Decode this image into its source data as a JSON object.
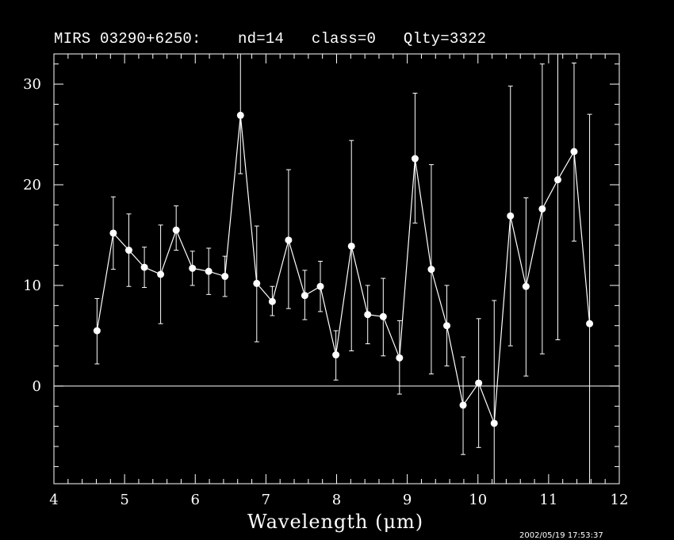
{
  "title": "MIRS 03290+6250:    nd=14   class=0   Qlty=3322",
  "timestamp": "2002/05/19 17:53:37",
  "colors": {
    "background": "#000000",
    "foreground": "#ffffff"
  },
  "chart_data": {
    "type": "scatter",
    "title": "MIRS 03290+6250:    nd=14   class=0   Qlty=3322",
    "xlabel": "Wavelength (μm)",
    "ylabel": "",
    "xlim": [
      4,
      12
    ],
    "ylim": [
      -9.7,
      33
    ],
    "xticks": [
      4,
      5,
      6,
      7,
      8,
      9,
      10,
      11,
      12
    ],
    "yticks": [
      0,
      10,
      20,
      30
    ],
    "zero_line": true,
    "connected": true,
    "error_bars": true,
    "series": [
      {
        "x": [
          4.61,
          4.84,
          5.06,
          5.28,
          5.51,
          5.73,
          5.96,
          6.19,
          6.42,
          6.64,
          6.87,
          7.09,
          7.32,
          7.55,
          7.77,
          7.99,
          8.21,
          8.44,
          8.66,
          8.89,
          9.11,
          9.34,
          9.56,
          9.79,
          10.01,
          10.23,
          10.46,
          10.68,
          10.91,
          11.13,
          11.36,
          11.58
        ],
        "y": [
          5.5,
          15.2,
          13.5,
          11.8,
          11.1,
          15.5,
          11.7,
          11.4,
          10.9,
          26.9,
          10.2,
          8.4,
          14.5,
          9.0,
          9.9,
          3.1,
          13.9,
          7.1,
          6.9,
          2.8,
          22.6,
          11.6,
          6.0,
          -1.9,
          0.3,
          -3.7,
          16.9,
          9.9,
          17.6,
          20.5,
          23.3,
          6.2
        ],
        "err_low": [
          2.2,
          11.6,
          9.9,
          9.8,
          6.2,
          13.5,
          10.0,
          9.1,
          8.9,
          21.1,
          4.4,
          7.0,
          7.7,
          6.6,
          7.4,
          0.6,
          3.5,
          4.2,
          3.0,
          -0.8,
          16.2,
          1.2,
          2.0,
          -6.8,
          -6.1,
          -9.7,
          4.0,
          1.0,
          3.2,
          4.6,
          14.4,
          -9.7
        ],
        "err_high": [
          8.7,
          18.8,
          17.1,
          13.8,
          16.0,
          17.9,
          13.4,
          13.7,
          12.9,
          33.0,
          15.9,
          9.9,
          21.5,
          11.5,
          12.4,
          5.5,
          24.4,
          10.0,
          10.7,
          6.5,
          29.1,
          22.0,
          10.0,
          2.9,
          6.7,
          8.5,
          29.8,
          18.7,
          32.0,
          33.0,
          32.1,
          27.0
        ]
      }
    ]
  }
}
